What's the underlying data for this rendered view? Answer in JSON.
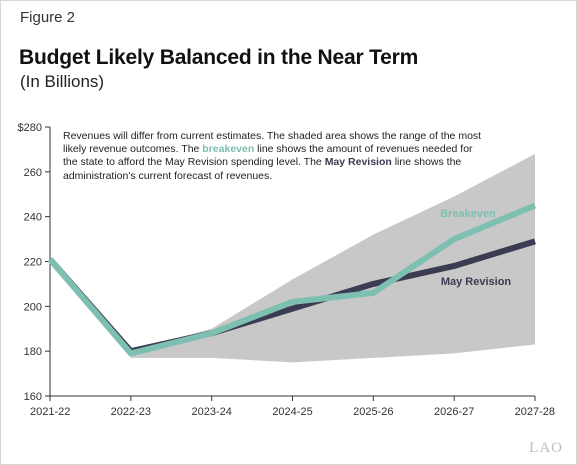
{
  "figure_label": "Figure 2",
  "title": "Budget Likely Balanced in the Near Term",
  "subtitle": "(In Billions)",
  "annotation": {
    "part1": "Revenues will differ from current estimates. The shaded area shows the range of the most likely revenue outcomes. The ",
    "breakeven_word": "breakeven",
    "part2": " line shows the amount of revenues needed for the state to afford the May Revision spending level. The ",
    "may_word": "May Revision",
    "part3": " line shows the administration's current forecast of revenues."
  },
  "logo_text": "LAO",
  "colors": {
    "band": "#c8c8c8",
    "breakeven": "#7dbfb0",
    "may_revision": "#3b3b52",
    "axis": "#333333"
  },
  "chart_data": {
    "type": "line",
    "x": [
      "2021-22",
      "2022-23",
      "2023-24",
      "2024-25",
      "2025-26",
      "2026-27",
      "2027-28"
    ],
    "ylim": [
      160,
      280
    ],
    "yticks": [
      160,
      180,
      200,
      220,
      240,
      260,
      280
    ],
    "ytick_labels": [
      "160",
      "180",
      "200",
      "220",
      "240",
      "260",
      "$280"
    ],
    "range_band": {
      "upper": [
        221,
        180,
        190,
        212,
        232,
        249,
        268
      ],
      "lower": [
        221,
        177,
        177,
        175,
        177,
        179,
        183
      ]
    },
    "series": [
      {
        "name": "May Revision",
        "values": [
          221,
          180,
          188,
          199,
          210,
          218,
          229
        ]
      },
      {
        "name": "Breakeven",
        "values": [
          221,
          179,
          188,
          202,
          206,
          230,
          245
        ]
      }
    ],
    "grid": false
  }
}
